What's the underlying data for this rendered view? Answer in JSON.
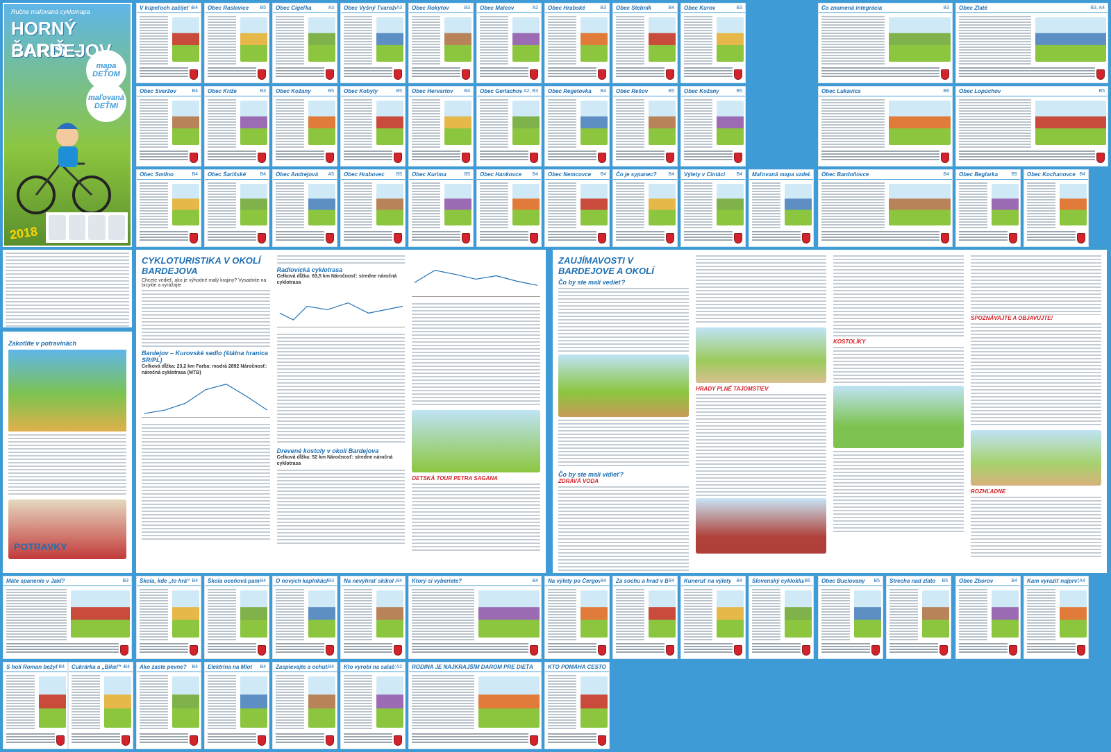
{
  "cover": {
    "subtitle": "Ručne maľovaná cyklomapa",
    "title_line1": "HORNÝ ŠARIŠ –",
    "title_line2": "BARDEJOV",
    "badge1": "mapa DEŤOM",
    "badge2": "maľovaná DEŤMI",
    "year": "2018"
  },
  "articles": {
    "cyklo_title": "CYKLOTURISTIKA V OKOLÍ BARDEJOVA",
    "cyklo_lead": "Chcete vedieť, ako je výhodné malý krajiny? Vysadnite na bicykle a vyrážajte",
    "route1_name": "Radlovická cyklotrasa",
    "route1_facts": "Celková dĺžka: 63,5 km Náročnosť: stredne náročná cyklotrasa",
    "route2_name": "Drevené kostoly v okolí Bardejova",
    "route2_facts": "Celková dĺžka: 52 km Náročnosť: stredne náročná cyklotrasa",
    "route3_name": "Bardejov – Kurovské sedlo (štátna hranica SR/PL)",
    "route3_facts": "Celková dĺžka: 23,2 km Farba: modrá 2892 Náročnosť: náročná cyklotrasa (MTB)",
    "detska_tour": "DETSKÁ TOUR PETRA SAGANA",
    "zauj_title": "ZAUJÍMAVOSTI V BARDEJOVE A OKOLÍ",
    "zauj_q1": "Čo by ste mali vedieť?",
    "zauj_q2": "Čo by ste mali vidieť?",
    "zdrava": "ZDRAVÁ VODA",
    "hrady": "HRADY PLNÉ TAJOMSTIEV",
    "kostolik": "KOSTOLÍKY",
    "spoznavajte": "SPOZNÁVAJTE A OBJAVUJTE!",
    "rozhladne": "ROZHĽADNE",
    "potravky": "POTRAVKY",
    "zakotlite": "Zakotlite v potravinách"
  },
  "cards": [
    {
      "t": "V kúpeľoch začíjeť veľa zábavy",
      "g": "B4"
    },
    {
      "t": "Obec Raslavice",
      "g": "B5"
    },
    {
      "t": "Obec Cigeľka",
      "g": "A3"
    },
    {
      "t": "Obec Vyšný Tvarožec",
      "g": "A3"
    },
    {
      "t": "Obec Rokytov",
      "g": "B3"
    },
    {
      "t": "Obec Malcov",
      "g": "A2"
    },
    {
      "t": "Obec Hrabské",
      "g": "B3"
    },
    {
      "t": "Obec Stebník",
      "g": "B4"
    },
    {
      "t": "Obec Kurov",
      "g": "B3"
    },
    {
      "t": "Čo znamená integrácia",
      "g": "B3"
    },
    {
      "t": "Obec Zlaté",
      "g": "B3, A4"
    },
    {
      "t": "Obec Sveržov",
      "g": "B4"
    },
    {
      "t": "Obec Kríže",
      "g": "B3"
    },
    {
      "t": "Obec Kožany",
      "g": "B5"
    },
    {
      "t": "Obec Kobyly",
      "g": "B5"
    },
    {
      "t": "Obec Hervartov",
      "g": "B4"
    },
    {
      "t": "Obec Gerlachov",
      "g": "A2, B3"
    },
    {
      "t": "Obec Regetovka",
      "g": "B4"
    },
    {
      "t": "Obec Rešov",
      "g": "B5"
    },
    {
      "t": "Obec Kožany",
      "g": "B5"
    },
    {
      "t": "Obec Lukavica",
      "g": "B6"
    },
    {
      "t": "Obec Lopúchov",
      "g": "B5"
    },
    {
      "t": "Obec Smilno",
      "g": "B4"
    },
    {
      "t": "Obec Šarišské",
      "g": "B4"
    },
    {
      "t": "Obec Andrejová",
      "g": "A5"
    },
    {
      "t": "Obec Hrabovec",
      "g": "B5"
    },
    {
      "t": "Obec Kurima",
      "g": "B5"
    },
    {
      "t": "Obec Hankovce",
      "g": "B4"
    },
    {
      "t": "Obec Nemcovce",
      "g": "B4"
    },
    {
      "t": "Čo je sypanec?",
      "g": "B4"
    },
    {
      "t": "Výlety v Cintáci",
      "g": "B4"
    },
    {
      "t": "Maľovaná mapa vzdelanie deti na školách",
      "g": ""
    },
    {
      "t": "Obec Bardoňovce",
      "g": "B4"
    },
    {
      "t": "Obec Beglarka",
      "g": "B5"
    },
    {
      "t": "Obec Kochanovce",
      "g": "B4"
    },
    {
      "t": "Máte spanenie v Jakl?",
      "g": "B3"
    },
    {
      "t": "Škola, kde „to hrá“",
      "g": "B4"
    },
    {
      "t": "Škola oceňová pamätníkom",
      "g": "B4"
    },
    {
      "t": "O nových kaplnkách",
      "g": "B3"
    },
    {
      "t": "Na nevýhrať skikol ľoma",
      "g": "B4"
    },
    {
      "t": "Ktorý si vyberiete?",
      "g": "B4"
    },
    {
      "t": "Na výlety po Čergove",
      "g": "B4"
    },
    {
      "t": "Za sochu a hrad v Bardejove",
      "g": "B4"
    },
    {
      "t": "Kuneruť na výlety",
      "g": "B4"
    },
    {
      "t": "Slovenský cykloklub",
      "g": "B5"
    },
    {
      "t": "Obec Buclovany",
      "g": "B5"
    },
    {
      "t": "Strecha nad zlato",
      "g": "B5"
    },
    {
      "t": "Obec Zborov",
      "g": "B4"
    },
    {
      "t": "Kam vyraziť najprv?",
      "g": "A4"
    },
    {
      "t": "S holí Roman bežyľom a kumíkom",
      "g": "B4"
    },
    {
      "t": "Cukrárka a „Bikeľ“ výcviku?",
      "g": "B4"
    },
    {
      "t": "Ako zaste pevne?",
      "g": "B4"
    },
    {
      "t": "Elektrina na Mlot",
      "g": "B4"
    },
    {
      "t": "Zaspievajte a ochutnajte",
      "g": "B4"
    },
    {
      "t": "Kto vyrobí na salaš?",
      "g": "A2"
    },
    {
      "t": "RODINA JE NAJKRAJŠÍM DAROM PRE DIEŤA",
      "g": ""
    },
    {
      "t": "KTO POMÁHA CESTOVNÉMU RUCHU RÁSŤ?",
      "g": ""
    }
  ]
}
